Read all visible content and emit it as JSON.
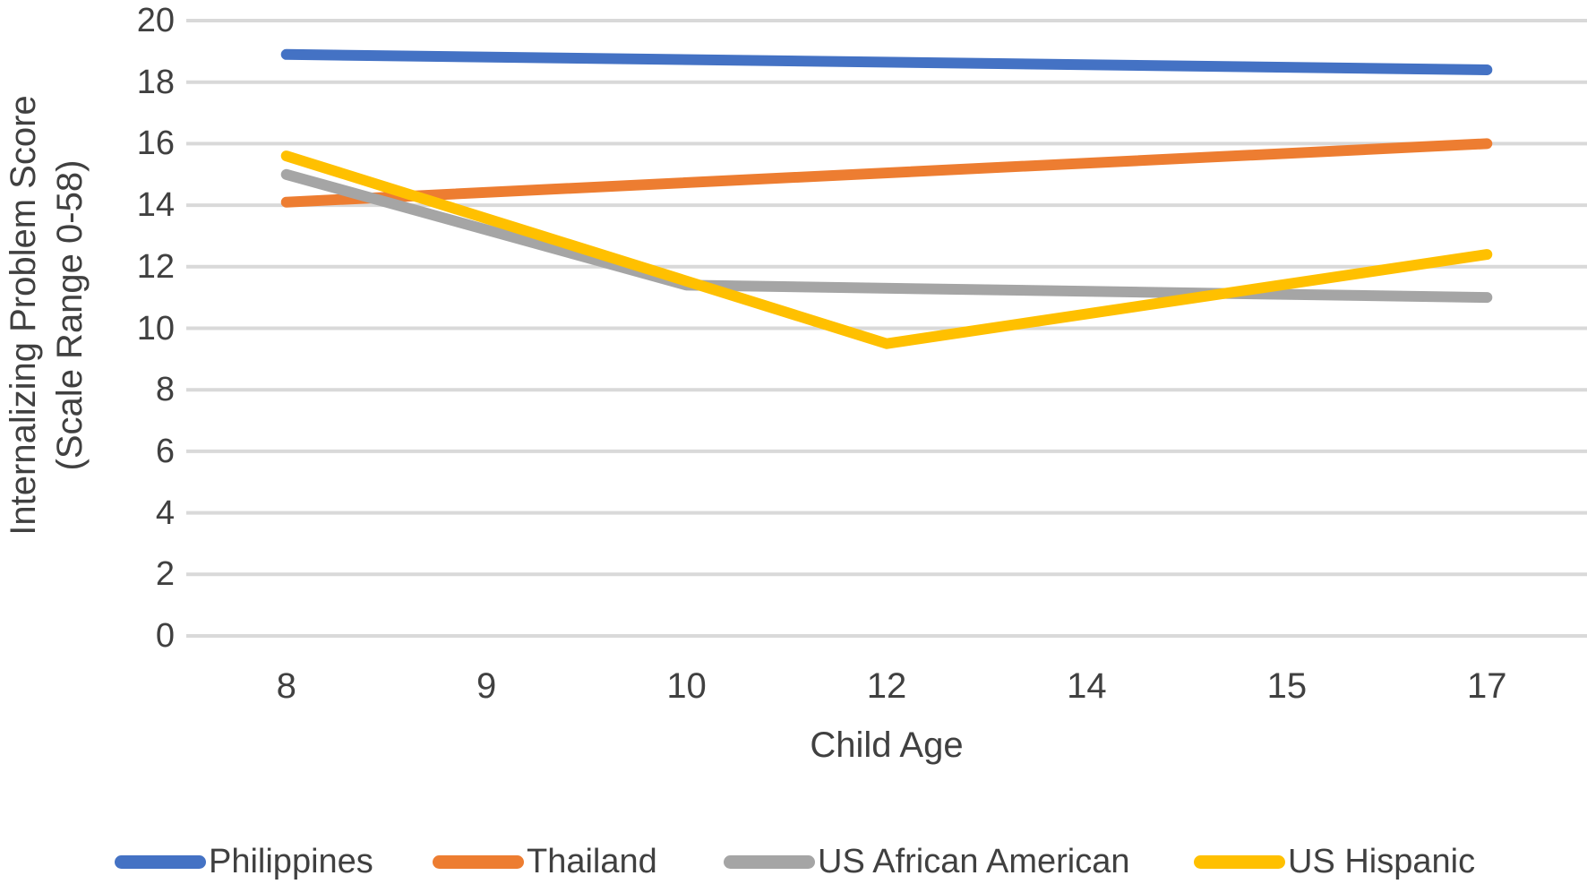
{
  "chart_data": {
    "type": "line",
    "title": "",
    "xlabel": "Child Age",
    "ylabel_line1": "Internalizing Problem Score",
    "ylabel_line2": "(Scale Range 0-58)",
    "categories": [
      "8",
      "9",
      "10",
      "12",
      "14",
      "15",
      "17"
    ],
    "ylim": [
      0,
      20
    ],
    "ytick_step": 2,
    "grid": "horizontal",
    "legend_position": "bottom",
    "series": [
      {
        "name": "Philippines",
        "color": "#4472C4",
        "points": [
          {
            "x": "8",
            "y": 18.9
          },
          {
            "x": "17",
            "y": 18.4
          }
        ]
      },
      {
        "name": "Thailand",
        "color": "#ED7D31",
        "points": [
          {
            "x": "8",
            "y": 14.1
          },
          {
            "x": "17",
            "y": 16.0
          }
        ]
      },
      {
        "name": "US African American",
        "color": "#A5A5A5",
        "points": [
          {
            "x": "8",
            "y": 15.0
          },
          {
            "x": "10",
            "y": 11.4
          },
          {
            "x": "17",
            "y": 11.0
          }
        ]
      },
      {
        "name": "US Hispanic",
        "color": "#FFC000",
        "points": [
          {
            "x": "8",
            "y": 15.6
          },
          {
            "x": "12",
            "y": 9.5
          },
          {
            "x": "17",
            "y": 12.4
          }
        ]
      }
    ],
    "colors": {
      "gridline": "#D9D9D9",
      "text": "#404040"
    }
  }
}
